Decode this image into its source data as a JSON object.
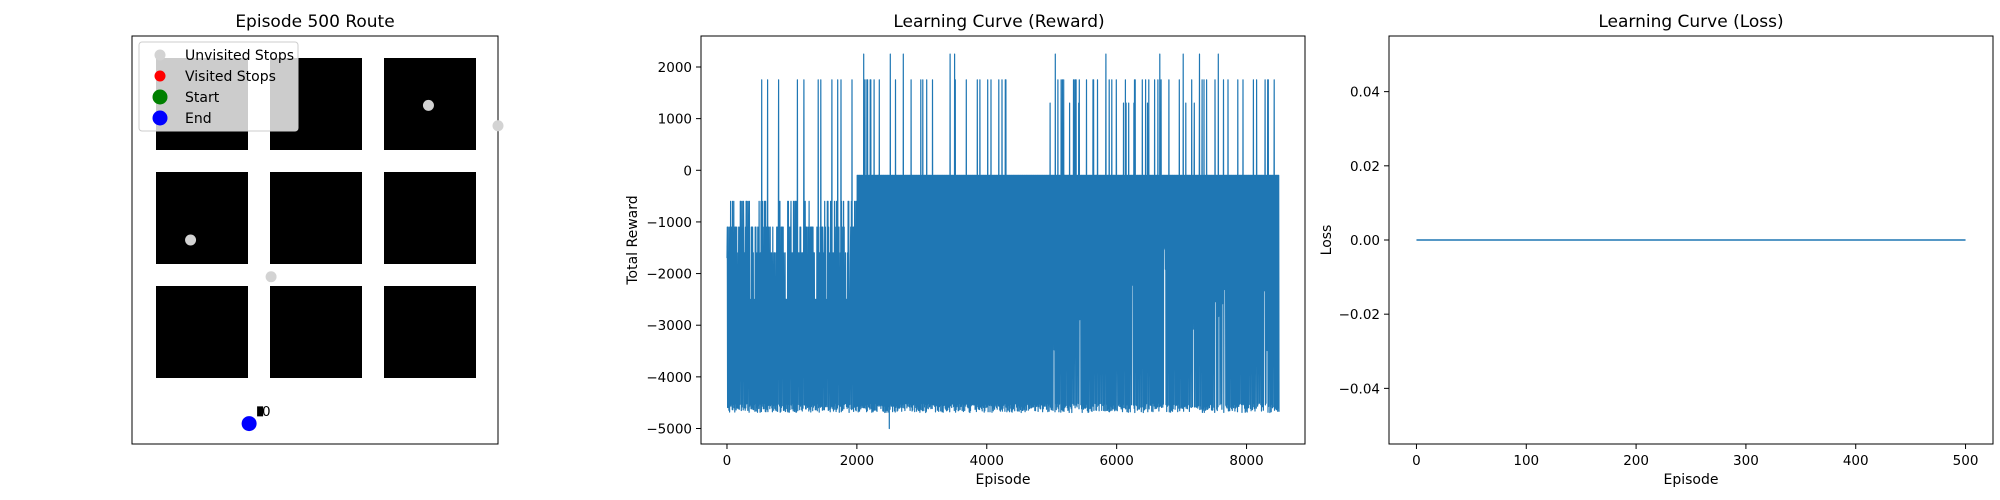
{
  "chart_data": [
    {
      "type": "scatter",
      "title": "Episode 500 Route",
      "xlabel": "",
      "ylabel": "",
      "grid": false,
      "legend": {
        "placement": "top-left",
        "entries": [
          {
            "label": "Unvisited Stops",
            "color": "#d3d3d3"
          },
          {
            "label": "Visited Stops",
            "color": "#ff0000"
          },
          {
            "label": "Start",
            "color": "#008000"
          },
          {
            "label": "End",
            "color": "#0000ff"
          }
        ]
      },
      "grid_blocks": {
        "rows": 3,
        "cols": 3,
        "color": "#000000"
      },
      "unvisited_stops": [
        {
          "x": 0.81,
          "y": 0.83
        },
        {
          "x": 1.0,
          "y": 0.78
        },
        {
          "x": 0.16,
          "y": 0.5
        },
        {
          "x": 0.38,
          "y": 0.41
        }
      ],
      "end_point": {
        "x": 0.32,
        "y": 0.05
      },
      "marker_label": "0",
      "marker_point": {
        "x": 0.35,
        "y": 0.08
      }
    },
    {
      "type": "line",
      "title": "Learning Curve (Reward)",
      "xlabel": "Episode",
      "ylabel": "Total Reward",
      "xlim": [
        -400,
        8900
      ],
      "ylim": [
        -5300,
        2600
      ],
      "xticks": [
        0,
        2000,
        4000,
        6000,
        8000
      ],
      "yticks": [
        -5000,
        -4000,
        -3000,
        -2000,
        -1000,
        0,
        1000,
        2000
      ],
      "series": [
        {
          "color": "#1f77b4",
          "episodes": 8500,
          "upper_level": -100,
          "lower_level": -4600,
          "max": 2250,
          "min": -5000
        }
      ]
    },
    {
      "type": "line",
      "title": "Learning Curve (Loss)",
      "xlabel": "Episode",
      "ylabel": "Loss",
      "xlim": [
        -25,
        525
      ],
      "ylim": [
        -0.055,
        0.055
      ],
      "xticks": [
        0,
        100,
        200,
        300,
        400,
        500
      ],
      "yticks": [
        -0.04,
        -0.02,
        0.0,
        0.02,
        0.04
      ],
      "ytick_labels": [
        "−0.04",
        "−0.02",
        "0.00",
        "0.02",
        "0.04"
      ],
      "series": [
        {
          "color": "#1f77b4",
          "x": [
            0,
            500
          ],
          "y": [
            0,
            0
          ]
        }
      ]
    }
  ]
}
